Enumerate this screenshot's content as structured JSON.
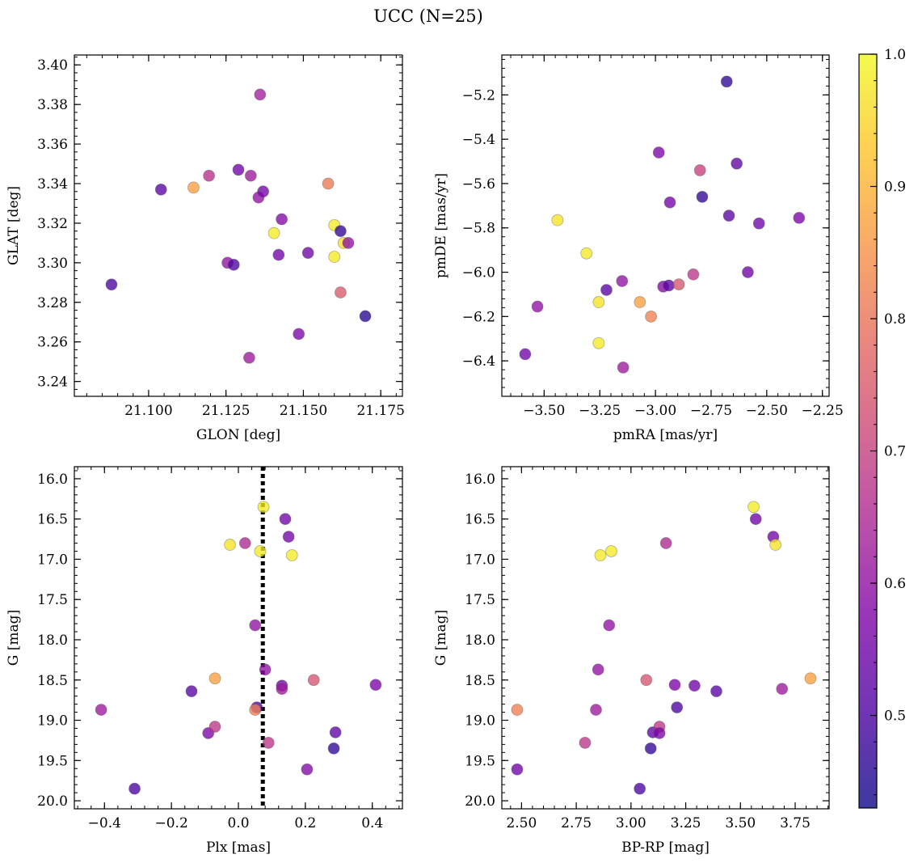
{
  "title": "UCC (N=25)",
  "colorbar": {
    "range": [
      0.43,
      1.0
    ],
    "ticks": [
      0.5,
      0.6,
      0.7,
      0.8,
      0.9,
      1.0
    ],
    "tick_labels": [
      "0.5",
      "0.6",
      "0.7",
      "0.8",
      "0.9",
      "1.0"
    ],
    "colormap": "plasma"
  },
  "chart_data": [
    {
      "type": "scatter",
      "xlabel": "GLON [deg]",
      "ylabel": "GLAT [deg]",
      "xlim": [
        21.076,
        21.182
      ],
      "ylim": [
        3.2325,
        3.405
      ],
      "xticks": [
        21.1,
        21.125,
        21.15,
        21.175
      ],
      "xtick_labels": [
        "21.100",
        "21.125",
        "21.150",
        "21.175"
      ],
      "yticks": [
        3.24,
        3.26,
        3.28,
        3.3,
        3.32,
        3.34,
        3.36,
        3.38,
        3.4
      ],
      "ytick_labels": [
        "3.24",
        "3.26",
        "3.28",
        "3.30",
        "3.32",
        "3.34",
        "3.36",
        "3.38",
        "3.40"
      ],
      "points": [
        {
          "x": 21.088,
          "y": 3.289,
          "c": 0.5
        },
        {
          "x": 21.104,
          "y": 3.337,
          "c": 0.52
        },
        {
          "x": 21.1145,
          "y": 3.338,
          "c": 0.87
        },
        {
          "x": 21.1195,
          "y": 3.344,
          "c": 0.67
        },
        {
          "x": 21.1255,
          "y": 3.3,
          "c": 0.6
        },
        {
          "x": 21.1275,
          "y": 3.299,
          "c": 0.5
        },
        {
          "x": 21.129,
          "y": 3.347,
          "c": 0.55
        },
        {
          "x": 21.1325,
          "y": 3.252,
          "c": 0.62
        },
        {
          "x": 21.133,
          "y": 3.344,
          "c": 0.62
        },
        {
          "x": 21.136,
          "y": 3.385,
          "c": 0.63
        },
        {
          "x": 21.1355,
          "y": 3.333,
          "c": 0.6
        },
        {
          "x": 21.137,
          "y": 3.336,
          "c": 0.56
        },
        {
          "x": 21.1405,
          "y": 3.315,
          "c": 0.98
        },
        {
          "x": 21.142,
          "y": 3.304,
          "c": 0.55
        },
        {
          "x": 21.143,
          "y": 3.322,
          "c": 0.58
        },
        {
          "x": 21.1485,
          "y": 3.264,
          "c": 0.57
        },
        {
          "x": 21.1515,
          "y": 3.305,
          "c": 0.55
        },
        {
          "x": 21.158,
          "y": 3.34,
          "c": 0.81
        },
        {
          "x": 21.16,
          "y": 3.319,
          "c": 0.98
        },
        {
          "x": 21.16,
          "y": 3.303,
          "c": 0.98
        },
        {
          "x": 21.162,
          "y": 3.316,
          "c": 0.47
        },
        {
          "x": 21.162,
          "y": 3.285,
          "c": 0.75
        },
        {
          "x": 21.163,
          "y": 3.31,
          "c": 0.96
        },
        {
          "x": 21.1645,
          "y": 3.31,
          "c": 0.6
        },
        {
          "x": 21.17,
          "y": 3.273,
          "c": 0.46
        }
      ]
    },
    {
      "type": "scatter",
      "xlabel": "pmRA [mas/yr]",
      "ylabel": "pmDE [mas/yr]",
      "xlim": [
        -3.69,
        -2.22
      ],
      "ylim": [
        -6.56,
        -5.02
      ],
      "xticks": [
        -3.5,
        -3.25,
        -3.0,
        -2.75,
        -2.5,
        -2.25
      ],
      "xtick_labels": [
        "−3.50",
        "−3.25",
        "−3.00",
        "−2.75",
        "−2.50",
        "−2.25"
      ],
      "yticks": [
        -6.4,
        -6.2,
        -6.0,
        -5.8,
        -5.6,
        -5.4,
        -5.2
      ],
      "ytick_labels": [
        "−6.4",
        "−6.2",
        "−6.0",
        "−5.8",
        "−5.6",
        "−5.4",
        "−5.2"
      ],
      "points": [
        {
          "x": -3.585,
          "y": -6.37,
          "c": 0.55
        },
        {
          "x": -3.53,
          "y": -6.155,
          "c": 0.6
        },
        {
          "x": -3.44,
          "y": -5.765,
          "c": 0.97
        },
        {
          "x": -3.31,
          "y": -5.915,
          "c": 0.98
        },
        {
          "x": -3.255,
          "y": -6.135,
          "c": 0.97
        },
        {
          "x": -3.255,
          "y": -6.32,
          "c": 0.98
        },
        {
          "x": -3.22,
          "y": -6.08,
          "c": 0.52
        },
        {
          "x": -3.15,
          "y": -6.04,
          "c": 0.6
        },
        {
          "x": -3.145,
          "y": -6.43,
          "c": 0.62
        },
        {
          "x": -3.07,
          "y": -6.135,
          "c": 0.87
        },
        {
          "x": -3.02,
          "y": -6.2,
          "c": 0.82
        },
        {
          "x": -2.985,
          "y": -5.46,
          "c": 0.57
        },
        {
          "x": -2.965,
          "y": -6.065,
          "c": 0.58
        },
        {
          "x": -2.94,
          "y": -6.06,
          "c": 0.52
        },
        {
          "x": -2.935,
          "y": -5.685,
          "c": 0.56
        },
        {
          "x": -2.895,
          "y": -6.055,
          "c": 0.74
        },
        {
          "x": -2.83,
          "y": -6.01,
          "c": 0.68
        },
        {
          "x": -2.8,
          "y": -5.54,
          "c": 0.7
        },
        {
          "x": -2.79,
          "y": -5.66,
          "c": 0.47
        },
        {
          "x": -2.68,
          "y": -5.14,
          "c": 0.47
        },
        {
          "x": -2.67,
          "y": -5.745,
          "c": 0.52
        },
        {
          "x": -2.635,
          "y": -5.51,
          "c": 0.53
        },
        {
          "x": -2.585,
          "y": -6.0,
          "c": 0.55
        },
        {
          "x": -2.535,
          "y": -5.78,
          "c": 0.55
        },
        {
          "x": -2.355,
          "y": -5.755,
          "c": 0.57
        }
      ]
    },
    {
      "type": "scatter",
      "xlabel": "Plx [mas]",
      "ylabel": "G [mag]",
      "xlim": [
        -0.49,
        0.49
      ],
      "ylim": [
        20.1,
        15.85
      ],
      "xticks": [
        -0.4,
        -0.2,
        0.0,
        0.2,
        0.4
      ],
      "xtick_labels": [
        "−0.4",
        "−0.2",
        "0.0",
        "0.2",
        "0.4"
      ],
      "yticks": [
        16.0,
        16.5,
        17.0,
        17.5,
        18.0,
        18.5,
        19.0,
        19.5,
        20.0
      ],
      "ytick_labels": [
        "16.0",
        "16.5",
        "17.0",
        "17.5",
        "18.0",
        "18.5",
        "19.0",
        "19.5",
        "20.0"
      ],
      "vline": {
        "x": 0.073,
        "style": "dotted"
      },
      "points": [
        {
          "x": -0.41,
          "y": 18.87,
          "c": 0.62
        },
        {
          "x": -0.31,
          "y": 19.85,
          "c": 0.5
        },
        {
          "x": -0.14,
          "y": 18.64,
          "c": 0.52
        },
        {
          "x": -0.09,
          "y": 19.16,
          "c": 0.57
        },
        {
          "x": -0.07,
          "y": 19.08,
          "c": 0.68
        },
        {
          "x": -0.07,
          "y": 18.48,
          "c": 0.87
        },
        {
          "x": -0.025,
          "y": 16.82,
          "c": 0.97
        },
        {
          "x": 0.02,
          "y": 16.8,
          "c": 0.65
        },
        {
          "x": 0.05,
          "y": 17.82,
          "c": 0.6
        },
        {
          "x": 0.055,
          "y": 18.84,
          "c": 0.5
        },
        {
          "x": 0.05,
          "y": 18.87,
          "c": 0.82
        },
        {
          "x": 0.065,
          "y": 16.9,
          "c": 0.98
        },
        {
          "x": 0.075,
          "y": 16.35,
          "c": 0.98
        },
        {
          "x": 0.08,
          "y": 18.37,
          "c": 0.6
        },
        {
          "x": 0.09,
          "y": 19.28,
          "c": 0.68
        },
        {
          "x": 0.13,
          "y": 18.57,
          "c": 0.55
        },
        {
          "x": 0.13,
          "y": 18.61,
          "c": 0.62
        },
        {
          "x": 0.14,
          "y": 16.5,
          "c": 0.55
        },
        {
          "x": 0.15,
          "y": 16.72,
          "c": 0.56
        },
        {
          "x": 0.16,
          "y": 16.95,
          "c": 0.98
        },
        {
          "x": 0.205,
          "y": 19.61,
          "c": 0.58
        },
        {
          "x": 0.225,
          "y": 18.5,
          "c": 0.74
        },
        {
          "x": 0.285,
          "y": 19.35,
          "c": 0.47
        },
        {
          "x": 0.29,
          "y": 19.15,
          "c": 0.53
        },
        {
          "x": 0.41,
          "y": 18.56,
          "c": 0.57
        }
      ]
    },
    {
      "type": "scatter",
      "xlabel": "BP-RP [mag]",
      "ylabel": "G [mag]",
      "xlim": [
        2.41,
        3.905
      ],
      "ylim": [
        20.1,
        15.85
      ],
      "xticks": [
        2.5,
        2.75,
        3.0,
        3.25,
        3.5,
        3.75
      ],
      "xtick_labels": [
        "2.50",
        "2.75",
        "3.00",
        "3.25",
        "3.50",
        "3.75"
      ],
      "yticks": [
        16.0,
        16.5,
        17.0,
        17.5,
        18.0,
        18.5,
        19.0,
        19.5,
        20.0
      ],
      "ytick_labels": [
        "16.0",
        "16.5",
        "17.0",
        "17.5",
        "18.0",
        "18.5",
        "19.0",
        "19.5",
        "20.0"
      ],
      "points": [
        {
          "x": 2.48,
          "y": 19.61,
          "c": 0.55
        },
        {
          "x": 2.48,
          "y": 18.87,
          "c": 0.82
        },
        {
          "x": 2.79,
          "y": 19.28,
          "c": 0.68
        },
        {
          "x": 2.84,
          "y": 18.87,
          "c": 0.62
        },
        {
          "x": 2.85,
          "y": 18.37,
          "c": 0.6
        },
        {
          "x": 2.86,
          "y": 16.95,
          "c": 0.98
        },
        {
          "x": 2.9,
          "y": 17.82,
          "c": 0.6
        },
        {
          "x": 2.91,
          "y": 16.9,
          "c": 0.98
        },
        {
          "x": 3.04,
          "y": 19.85,
          "c": 0.5
        },
        {
          "x": 3.07,
          "y": 18.5,
          "c": 0.74
        },
        {
          "x": 3.09,
          "y": 19.35,
          "c": 0.47
        },
        {
          "x": 3.1,
          "y": 19.15,
          "c": 0.53
        },
        {
          "x": 3.13,
          "y": 19.08,
          "c": 0.68
        },
        {
          "x": 3.13,
          "y": 19.16,
          "c": 0.57
        },
        {
          "x": 3.16,
          "y": 16.8,
          "c": 0.65
        },
        {
          "x": 3.2,
          "y": 18.56,
          "c": 0.57
        },
        {
          "x": 3.21,
          "y": 18.84,
          "c": 0.5
        },
        {
          "x": 3.29,
          "y": 18.57,
          "c": 0.55
        },
        {
          "x": 3.39,
          "y": 18.64,
          "c": 0.52
        },
        {
          "x": 3.56,
          "y": 16.35,
          "c": 0.98
        },
        {
          "x": 3.57,
          "y": 16.5,
          "c": 0.55
        },
        {
          "x": 3.65,
          "y": 16.72,
          "c": 0.56
        },
        {
          "x": 3.66,
          "y": 16.82,
          "c": 0.97
        },
        {
          "x": 3.69,
          "y": 18.61,
          "c": 0.62
        },
        {
          "x": 3.82,
          "y": 18.48,
          "c": 0.87
        }
      ]
    }
  ]
}
